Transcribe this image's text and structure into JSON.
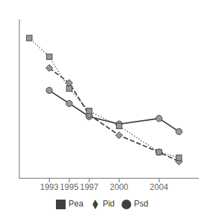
{
  "chart_data": {
    "type": "line",
    "x": [
      1991,
      1993,
      1995,
      1997,
      2000,
      2004,
      2006
    ],
    "series": [
      {
        "name": "Psd",
        "color": "#404040",
        "marker": "circle",
        "line_style": "solid",
        "values": [
          null,
          62,
          55,
          48,
          44,
          47,
          40
        ]
      },
      {
        "name": "Pid",
        "color": "#404040",
        "marker": "diamond",
        "line_style": "dashed",
        "values": [
          null,
          74,
          66,
          49,
          38,
          29,
          24
        ]
      },
      {
        "name": "Pea",
        "color": "#404040",
        "marker": "square",
        "line_style": "dotted",
        "values": [
          90,
          80,
          63,
          51,
          43,
          29,
          26
        ]
      }
    ],
    "xlim": [
      1990,
      2008
    ],
    "xticks": [
      1993,
      1995,
      1997,
      2000,
      2004
    ],
    "ylim": [
      15,
      100
    ],
    "grid": false,
    "legend": "bottom",
    "tick_labels": "x"
  }
}
